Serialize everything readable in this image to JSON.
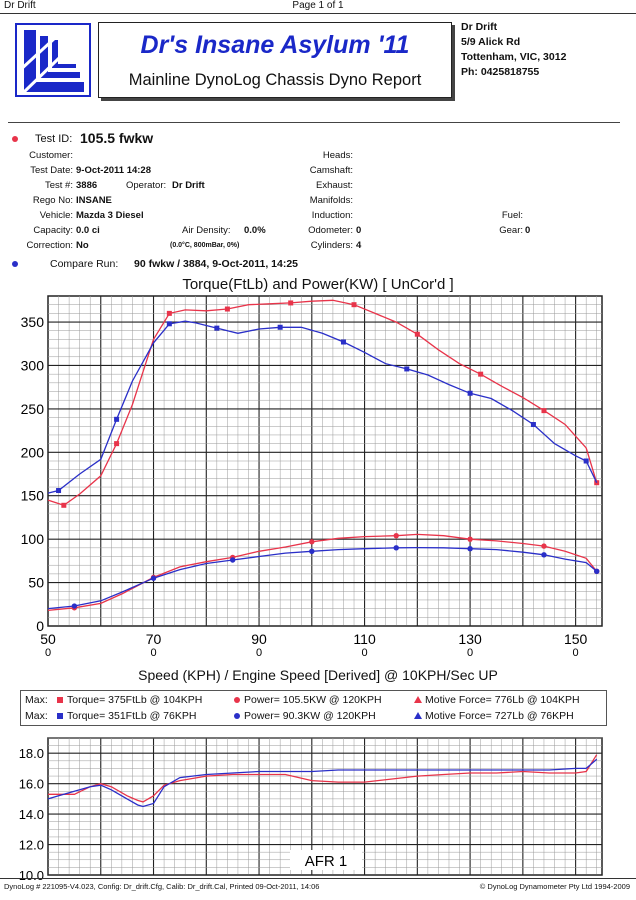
{
  "page": {
    "left": "Dr Drift",
    "center": "Page 1 of 1"
  },
  "header": {
    "title": "Dr's Insane Asylum '11",
    "subtitle": "Mainline DynoLog Chassis Dyno Report",
    "owner": "Dr Drift",
    "address1": "5/9 Alick Rd",
    "address2": "Tottenham, VIC, 3012",
    "phone": "Ph: 0425818755"
  },
  "test": {
    "id_label": "Test ID:",
    "id_value": "105.5 fwkw",
    "customer_label": "Customer:",
    "customer_value": "",
    "date_label": "Test Date:",
    "date_value": "9-Oct-2011 14:28",
    "num_label": "Test #:",
    "num_value": "3886",
    "operator_label": "Operator:",
    "operator_value": "Dr Drift",
    "rego_label": "Rego No:",
    "rego_value": "INSANE",
    "vehicle_label": "Vehicle:",
    "vehicle_value": "Mazda 3 Diesel",
    "capacity_label": "Capacity:",
    "capacity_value": "0.0 ci",
    "airdensity_label": "Air Density:",
    "airdensity_value": "0.0%",
    "correction_label": "Correction:",
    "correction_value": "No",
    "conditions": "(0.0°C, 800mBar, 0%)",
    "heads_label": "Heads:",
    "camshaft_label": "Camshaft:",
    "exhaust_label": "Exhaust:",
    "manifolds_label": "Manifolds:",
    "induction_label": "Induction:",
    "odometer_label": "Odometer:",
    "odometer_value": "0",
    "cylinders_label": "Cylinders:",
    "cylinders_value": "4",
    "fuel_label": "Fuel:",
    "gear_label": "Gear:",
    "gear_value": "0",
    "compare_label": "Compare Run:",
    "compare_value": "90 fwkw / 3884,   9-Oct-2011,     14:25"
  },
  "legend": {
    "max_label": "Max:",
    "run1_torque": "Torque= 375FtLb @ 104KPH",
    "run1_power": "Power= 105.5KW @ 120KPH",
    "run1_force": "Motive Force= 776Lb @ 104KPH",
    "run2_torque": "Torque= 351FtLb @ 76KPH",
    "run2_power": "Power= 90.3KW @ 120KPH",
    "run2_force": "Motive Force= 727Lb @ 76KPH"
  },
  "footer": {
    "left": "DynoLog # 221095-V4.023, Config: Dr_drift.Cfg, Calib: Dr_drift.Cal, Printed 09-Oct-2011, 14:06",
    "right": "© DynoLog Dynamometer Pty Ltd 1994-2009"
  },
  "colors": {
    "run1": "#e8344a",
    "run2": "#2a2fc8",
    "title": "#1a28c8"
  },
  "chart_data": [
    {
      "type": "line",
      "title": "Torque(FtLb) and Power(KW)     [ UnCor'd ]",
      "xlabel": "Speed (KPH) / Engine Speed [Derived] @ 10KPH/Sec UP",
      "xlim": [
        50,
        155
      ],
      "ylim": [
        0,
        380
      ],
      "xticks": [
        50,
        70,
        90,
        110,
        130,
        150
      ],
      "yticks": [
        0,
        50,
        100,
        150,
        200,
        250,
        300,
        350
      ],
      "grid": true,
      "series": [
        {
          "role": "torque-run1",
          "color": "#e8344a",
          "x": [
            50,
            53,
            56,
            60,
            63,
            66,
            70,
            73,
            76,
            80,
            84,
            88,
            92,
            96,
            100,
            104,
            108,
            112,
            116,
            120,
            124,
            128,
            132,
            136,
            140,
            144,
            148,
            152,
            154
          ],
          "y": [
            145,
            139,
            152,
            173,
            210,
            255,
            330,
            360,
            364,
            363,
            365,
            370,
            371,
            372,
            374,
            375,
            370,
            360,
            350,
            336,
            318,
            302,
            290,
            276,
            263,
            248,
            232,
            205,
            165
          ]
        },
        {
          "role": "torque-run2",
          "color": "#2a2fc8",
          "x": [
            50,
            52,
            56,
            60,
            63,
            66,
            70,
            73,
            76,
            78,
            82,
            86,
            90,
            94,
            98,
            102,
            106,
            110,
            114,
            118,
            122,
            126,
            130,
            134,
            138,
            142,
            146,
            150,
            152,
            154
          ],
          "y": [
            153,
            156,
            175,
            192,
            238,
            282,
            326,
            348,
            351,
            349,
            343,
            337,
            342,
            344,
            344,
            337,
            327,
            315,
            302,
            296,
            289,
            278,
            268,
            262,
            248,
            232,
            210,
            196,
            190,
            165
          ]
        },
        {
          "role": "power-run1",
          "color": "#e8344a",
          "x": [
            50,
            55,
            60,
            64,
            70,
            75,
            80,
            85,
            90,
            95,
            100,
            105,
            110,
            116,
            120,
            125,
            130,
            135,
            140,
            144,
            148,
            152,
            154
          ],
          "y": [
            18,
            21,
            26,
            37,
            56,
            68,
            74,
            79,
            86,
            91,
            97,
            101,
            103,
            104,
            105.5,
            104,
            100,
            98,
            95,
            92,
            86,
            78,
            63
          ]
        },
        {
          "role": "power-run2",
          "color": "#2a2fc8",
          "x": [
            50,
            55,
            60,
            64,
            70,
            75,
            80,
            85,
            90,
            95,
            100,
            105,
            110,
            116,
            120,
            125,
            130,
            135,
            140,
            144,
            148,
            152,
            154
          ],
          "y": [
            20,
            23,
            29,
            39,
            55,
            65,
            72,
            76,
            80,
            84,
            86,
            88,
            89,
            90,
            90.3,
            90,
            89,
            88,
            85,
            82,
            77,
            73,
            63
          ]
        }
      ]
    },
    {
      "type": "line",
      "title": "AFR 1",
      "xlim": [
        50,
        155
      ],
      "ylim": [
        10,
        19
      ],
      "yticks": [
        10.0,
        12.0,
        14.0,
        16.0,
        18.0
      ],
      "grid": true,
      "series": [
        {
          "role": "afr-run1",
          "color": "#e8344a",
          "x": [
            50,
            55,
            58,
            60,
            62,
            65,
            67,
            68,
            70,
            72,
            75,
            80,
            85,
            90,
            95,
            100,
            105,
            110,
            115,
            120,
            125,
            130,
            135,
            140,
            145,
            150,
            152,
            154
          ],
          "y": [
            15.3,
            15.3,
            15.8,
            16.0,
            15.8,
            15.2,
            14.9,
            14.8,
            15.2,
            15.9,
            16.2,
            16.5,
            16.6,
            16.6,
            16.6,
            16.2,
            16.1,
            16.1,
            16.3,
            16.5,
            16.6,
            16.7,
            16.7,
            16.8,
            16.7,
            16.7,
            16.8,
            17.9
          ]
        },
        {
          "role": "afr-run2",
          "color": "#2a2fc8",
          "x": [
            50,
            52,
            55,
            58,
            60,
            62,
            65,
            67,
            68,
            70,
            72,
            75,
            80,
            85,
            90,
            95,
            100,
            105,
            110,
            115,
            120,
            125,
            130,
            135,
            140,
            145,
            150,
            152,
            154
          ],
          "y": [
            15.0,
            15.2,
            15.5,
            15.8,
            15.9,
            15.6,
            15.0,
            14.6,
            14.5,
            14.7,
            15.8,
            16.4,
            16.6,
            16.7,
            16.8,
            16.8,
            16.8,
            16.9,
            16.9,
            16.9,
            16.9,
            16.9,
            16.9,
            16.9,
            16.9,
            16.9,
            17.0,
            17.0,
            17.6
          ]
        }
      ]
    }
  ]
}
